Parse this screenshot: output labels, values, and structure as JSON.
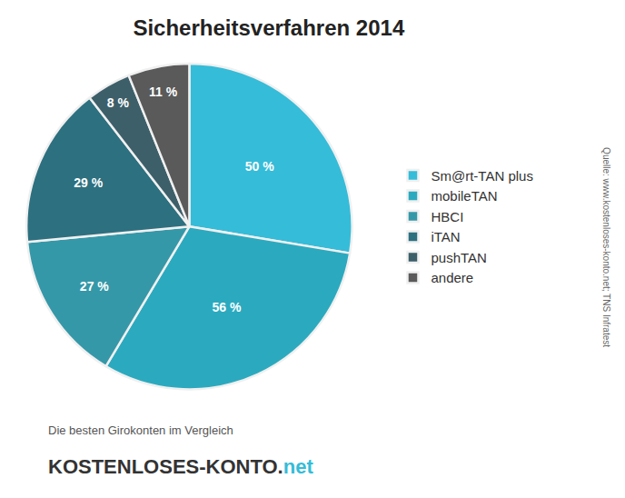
{
  "chart_data": {
    "type": "pie",
    "title": "Sicherheitsverfahren 2014",
    "categories": [
      "Sm@rt-TAN plus",
      "mobileTAN",
      "HBCI",
      "iTAN",
      "pushTAN",
      "andere"
    ],
    "values": [
      50,
      56,
      27,
      29,
      8,
      11
    ],
    "value_labels": [
      "50 %",
      "56 %",
      "27 %",
      "29 %",
      "8 %",
      "11 %"
    ],
    "colors": [
      "#35bcd8",
      "#2baabf",
      "#3598a8",
      "#2d7080",
      "#3d5f6a",
      "#5a5a5a"
    ],
    "data_labels": true,
    "legend": "right",
    "annotations": [
      "Quelle: www.kostenloses-konto.net; TNS Infratest",
      "Die besten Girokonten im Vergleich",
      "KOSTENLOSES-KONTO.",
      "net"
    ]
  }
}
